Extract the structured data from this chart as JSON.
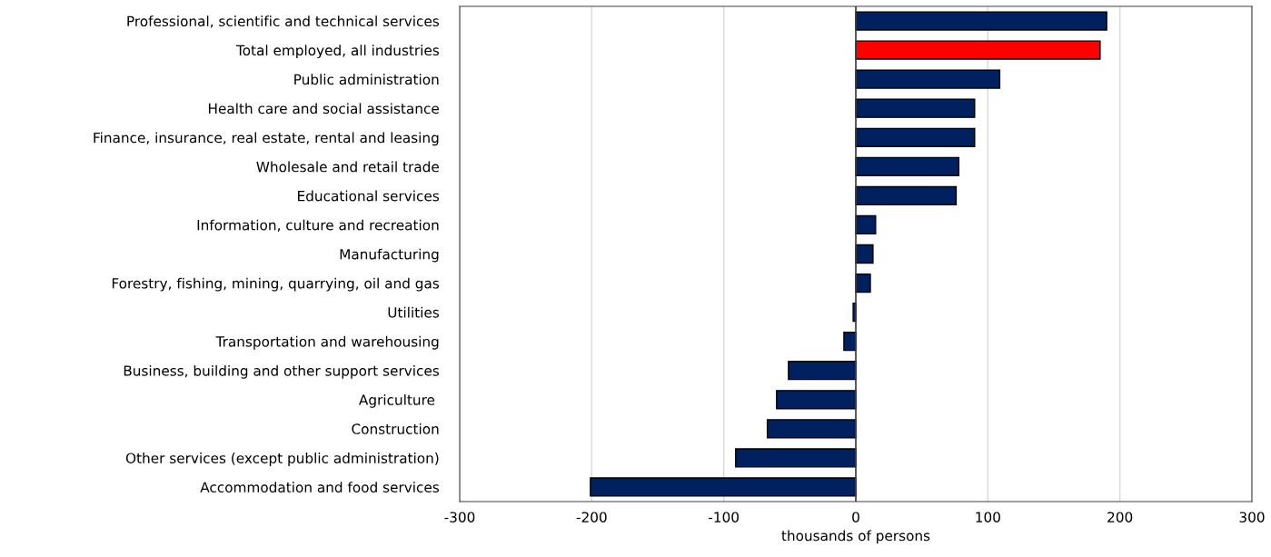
{
  "chart_data": {
    "type": "bar",
    "orientation": "horizontal",
    "xlabel": "thousands of persons",
    "categories": [
      "Professional, scientific and technical services",
      "Total employed, all industries",
      "Public administration",
      "Health care and social assistance",
      "Finance, insurance, real estate, rental and leasing",
      "Wholesale and retail trade",
      "Educational services",
      "Information, culture and recreation",
      "Manufacturing",
      "Forestry, fishing, mining, quarrying, oil and gas",
      "Utilities",
      "Transportation and warehousing",
      "Business, building and other support services",
      "Agriculture ",
      "Construction",
      "Other services (except public administration)",
      "Accommodation and food services"
    ],
    "values": [
      190,
      185,
      109,
      90,
      90,
      78,
      76,
      15,
      13,
      11,
      -2,
      -9,
      -51,
      -60,
      -67,
      -91,
      -201
    ],
    "colors": [
      "#002060",
      "#ff0000",
      "#002060",
      "#002060",
      "#002060",
      "#002060",
      "#002060",
      "#002060",
      "#002060",
      "#002060",
      "#002060",
      "#002060",
      "#002060",
      "#002060",
      "#002060",
      "#002060",
      "#002060"
    ],
    "xlim": [
      -300,
      300
    ],
    "xticks": [
      -300,
      -200,
      -100,
      0,
      100,
      200,
      300
    ],
    "grid": "x",
    "legend": false
  }
}
